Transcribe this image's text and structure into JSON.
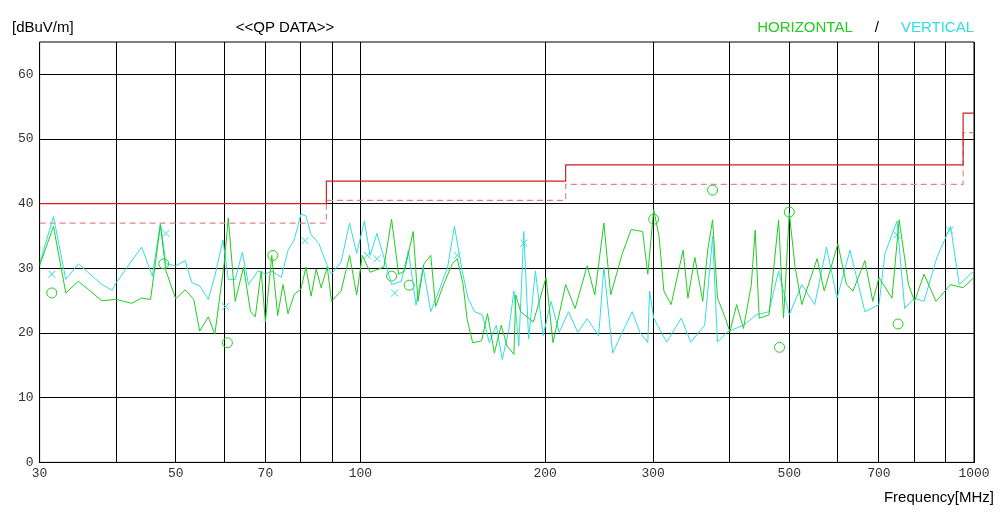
{
  "chart_data": {
    "type": "line",
    "title": "<<QP DATA>>",
    "ylabel": "[dBuV/m]",
    "xlabel": "Frequency[MHz]",
    "annotations": [
      "/"
    ],
    "log": "x",
    "grid": true,
    "legend": "top right",
    "xlim": [
      30,
      1000
    ],
    "ylim": [
      0,
      65
    ],
    "xticks": [
      30,
      {
        "value": 40,
        "label": null
      },
      50,
      {
        "value": 60,
        "label": null
      },
      70,
      {
        "value": 80,
        "label": null
      },
      {
        "value": 90,
        "label": null
      },
      100,
      200,
      300,
      {
        "value": 400,
        "label": null
      },
      500,
      {
        "value": 600,
        "label": null
      },
      700,
      {
        "value": 800,
        "label": null
      },
      {
        "value": 900,
        "label": null
      },
      1000
    ],
    "yticks": [
      0,
      10,
      20,
      30,
      40,
      50,
      60
    ],
    "series": [
      {
        "name": "HORIZONTAL",
        "color": "#22cc22",
        "type": "line",
        "marker": "none",
        "x": [
          30,
          31.6,
          33.1,
          34.7,
          37.9,
          40,
          42.4,
          44,
          45.5,
          47.2,
          48.2,
          50,
          51.8,
          53.5,
          54.7,
          56.5,
          57.9,
          60,
          60.9,
          62.5,
          64.5,
          66.2,
          67.4,
          68.9,
          70,
          71.7,
          73.3,
          74.8,
          76.2,
          78,
          80,
          81.5,
          83.1,
          84.7,
          86.3,
          88.3,
          89.7,
          93,
          96,
          98.6,
          100.7,
          103.7,
          109.2,
          112.4,
          115.4,
          118,
          121.9,
          124.1,
          126.9,
          130.2,
          132.6,
          136.6,
          141.2,
          143.8,
          147,
          149.2,
          152.4,
          157.6,
          161.1,
          165.3,
          169.6,
          173.4,
          177.9,
          179.1,
          182.5,
          191.4,
          200.7,
          206,
          216,
          223.8,
          234.2,
          241,
          249.3,
          255.8,
          267.2,
          276.2,
          288.4,
          294,
          300.6,
          306.7,
          312.3,
          320.9,
          335.7,
          341.8,
          350.8,
          361.3,
          368.1,
          374.9,
          381.9,
          393.4,
          400,
          410.4,
          421,
          433.6,
          439.9,
          446.6,
          463.3,
          480.3,
          489.3,
          500,
          511,
          524,
          555,
          570,
          600,
          619.6,
          635,
          664,
          684,
          700,
          735,
          755,
          782,
          800,
          829,
          867,
          916,
          960,
          1000
        ],
        "values": [
          30.4,
          36.5,
          26.2,
          28,
          25,
          25.2,
          24.6,
          25.4,
          25.2,
          36.7,
          29.6,
          25.3,
          26.7,
          25.2,
          20.3,
          22.5,
          19.8,
          30.9,
          37.8,
          24.9,
          30.2,
          23.3,
          22.5,
          29.6,
          21.7,
          32,
          22.7,
          27.5,
          23,
          26,
          26.8,
          30.2,
          25.7,
          29.9,
          27,
          30.2,
          24.9,
          26.5,
          32,
          25.9,
          32,
          29.4,
          30.2,
          37.6,
          29.1,
          29.6,
          35.7,
          24.9,
          30.7,
          32,
          24.1,
          27.5,
          30.7,
          31.5,
          27.5,
          22.2,
          18.5,
          18.8,
          23,
          16.9,
          21.2,
          18,
          16.7,
          25.9,
          23.3,
          21.7,
          28.6,
          18.5,
          27.5,
          23.8,
          30.4,
          25.9,
          37,
          25.9,
          32.3,
          36,
          35.7,
          29.1,
          39.1,
          34.9,
          26.5,
          24.4,
          32.8,
          25.4,
          31.7,
          24.9,
          32.8,
          37.5,
          25.4,
          22.3,
          20.2,
          24.4,
          20.7,
          27.5,
          35.9,
          22.3,
          22.8,
          37.5,
          22.3,
          38.6,
          30.2,
          24.4,
          31.5,
          26.5,
          33.8,
          27.5,
          26.5,
          31.2,
          24.9,
          28.6,
          25.4,
          37.5,
          27.5,
          24.9,
          29.1,
          24.9,
          27.5,
          27,
          28.6
        ]
      },
      {
        "name": "VERTICAL",
        "color": "#33dddd",
        "type": "line",
        "marker": "none",
        "x": [
          30,
          31.6,
          33.1,
          34.7,
          37.9,
          39.4,
          40,
          44,
          45.8,
          47.2,
          48.2,
          50,
          51.8,
          53.1,
          54.7,
          56.5,
          57.9,
          59.7,
          60.9,
          62.5,
          64.2,
          65.7,
          68.1,
          70,
          71.7,
          74.3,
          76.2,
          78,
          80,
          81.5,
          83.1,
          85.6,
          88.3,
          89.7,
          93,
          96,
          98.6,
          101.5,
          103.7,
          106.4,
          109.2,
          112.4,
          116.6,
          119.7,
          123.2,
          126.5,
          130.2,
          134.2,
          138.7,
          142.3,
          146.5,
          149.7,
          153.5,
          158.1,
          162.2,
          166.5,
          170.3,
          174.6,
          177.9,
          181.2,
          184.6,
          188,
          192.8,
          198.5,
          204.5,
          210.8,
          218.4,
          226,
          234.2,
          244.5,
          249.3,
          257.7,
          267.2,
          277.3,
          285.4,
          294,
          296,
          300.6,
          315.6,
          333.3,
          345.5,
          364,
          374.9,
          381.9,
          396.5,
          421,
          441.7,
          463.3,
          480.3,
          500,
          524,
          550,
          575,
          598,
          628,
          664,
          700,
          716,
          749,
          771,
          800,
          829,
          870,
          916,
          946,
          1000
        ],
        "values": [
          30.7,
          38,
          28.3,
          30.7,
          27.5,
          26.6,
          27.8,
          33.3,
          28.8,
          37,
          30.7,
          30.4,
          31.2,
          27.8,
          27.3,
          25.2,
          28.8,
          34.4,
          28.3,
          28.3,
          32.5,
          27.5,
          29.6,
          29.1,
          29.6,
          28.6,
          32.8,
          34.4,
          38.4,
          38.1,
          35.2,
          33.8,
          30.4,
          29.1,
          31,
          37,
          32.3,
          37.3,
          32,
          35.4,
          31.7,
          27.5,
          28,
          32.8,
          24.3,
          30.2,
          23.3,
          26.5,
          30.2,
          36.5,
          29.6,
          25.4,
          23.3,
          22.8,
          18.5,
          21.2,
          15.9,
          20.6,
          26.5,
          18,
          35.7,
          19.1,
          29.6,
          19.6,
          24.9,
          20.1,
          23.3,
          20.1,
          22.2,
          19.6,
          30.2,
          16.9,
          20.1,
          23.3,
          20.1,
          18.5,
          26.5,
          22.3,
          18.6,
          22.3,
          18.6,
          21.2,
          34.9,
          18.6,
          20.2,
          21.2,
          22.8,
          23.3,
          29.6,
          22.8,
          27.5,
          24.4,
          33.3,
          25.4,
          32.8,
          23.3,
          24.4,
          32.3,
          37.3,
          23.8,
          25.4,
          24.9,
          31.7,
          36.5,
          27.5,
          29.6
        ]
      },
      {
        "color": "#22cc22",
        "type": "scatter",
        "marker": "circle",
        "x": [
          31.4,
          47.8,
          60.7,
          72,
          112.4,
          120.1,
          300.6,
          374.9,
          482,
          500,
          752
        ],
        "values": [
          26.2,
          30.7,
          18.5,
          32,
          28.8,
          27.4,
          37.6,
          42.1,
          17.8,
          38.7,
          21.4
        ]
      },
      {
        "color": "#33dddd",
        "type": "scatter",
        "marker": "cross",
        "x": [
          31.4,
          48.2,
          60.3,
          81.2,
          102.6,
          106.4,
          113.7,
          143.8,
          184.6,
          749,
          913
        ],
        "values": [
          29.1,
          35.4,
          24.1,
          34.3,
          32,
          31.5,
          26.2,
          32,
          33.9,
          35.2,
          35.9
        ]
      },
      {
        "color": "#cc2222",
        "type": "step",
        "line_style": "solid",
        "x": [
          30,
          88,
          216,
          960,
          1000
        ],
        "values": [
          40,
          43.5,
          46,
          54,
          54
        ]
      },
      {
        "color": "#e08888",
        "type": "step",
        "line_style": "dashed",
        "x": [
          30,
          88,
          216,
          960,
          1000
        ],
        "values": [
          37,
          40.5,
          43,
          51,
          51
        ]
      }
    ]
  }
}
